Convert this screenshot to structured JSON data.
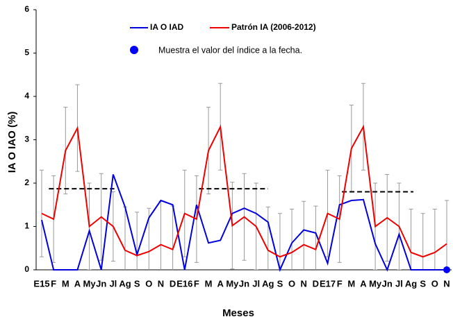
{
  "chart_data": {
    "type": "line",
    "y_label": "IA O IAO (%)",
    "x_label": "Meses",
    "note": "Muestra el valor del índice a la fecha.",
    "note_color": "#0000ff",
    "categories": [
      "E15",
      "F",
      "M",
      "A",
      "My",
      "Jn",
      "Jl",
      "Ag",
      "S",
      "O",
      "N",
      "D",
      "E16",
      "F",
      "M",
      "A",
      "My",
      "Jn",
      "Jl",
      "Ag",
      "S",
      "O",
      "N",
      "D",
      "E17",
      "F",
      "M",
      "A",
      "My",
      "Jn",
      "Jl",
      "Ag",
      "S",
      "O",
      "N"
    ],
    "series": [
      {
        "name": "IA O IAD",
        "color": "#0000dd",
        "values": [
          1.15,
          0,
          0,
          0,
          0.9,
          0,
          2.2,
          1.45,
          0.35,
          1.2,
          1.6,
          1.5,
          0,
          1.5,
          0.62,
          0.68,
          1.3,
          1.42,
          1.3,
          1.1,
          0,
          0.62,
          0.92,
          0.85,
          0.15,
          1.5,
          1.6,
          1.62,
          0.6,
          0,
          0.82,
          0,
          0,
          0,
          0
        ]
      },
      {
        "name": "Patrón IA (2006-2012)",
        "color": "#ee0000",
        "values": [
          1.3,
          1.17,
          2.75,
          3.27,
          1.0,
          1.22,
          1.0,
          0.45,
          0.33,
          0.42,
          0.58,
          0.47,
          1.3,
          1.17,
          2.75,
          3.3,
          1.02,
          1.22,
          1.0,
          0.45,
          0.3,
          0.4,
          0.58,
          0.47,
          1.3,
          1.17,
          2.8,
          3.3,
          1.0,
          1.2,
          1.0,
          0.4,
          0.3,
          0.4,
          0.6
        ],
        "errors": [
          1.0,
          1.0,
          1.0,
          1.0,
          1.0,
          1.0,
          0.8,
          1.0,
          1.0,
          1.0,
          1.0,
          1.0,
          1.0,
          1.0,
          1.0,
          1.0,
          1.0,
          1.0,
          1.0,
          1.0,
          1.0,
          1.0,
          1.0,
          1.0,
          1.0,
          1.0,
          1.0,
          1.0,
          1.0,
          1.0,
          1.0,
          1.0,
          1.0,
          1.0,
          1.0
        ]
      }
    ],
    "dashed_lines": [
      {
        "start": 0.6,
        "end": 6.1,
        "value": 1.87
      },
      {
        "start": 13.2,
        "end": 19,
        "value": 1.87
      },
      {
        "start": 25.2,
        "end": 31.2,
        "value": 1.8
      }
    ],
    "ylim": [
      0,
      6
    ],
    "yticks": [
      0,
      1,
      2,
      3,
      4,
      5,
      6
    ]
  }
}
